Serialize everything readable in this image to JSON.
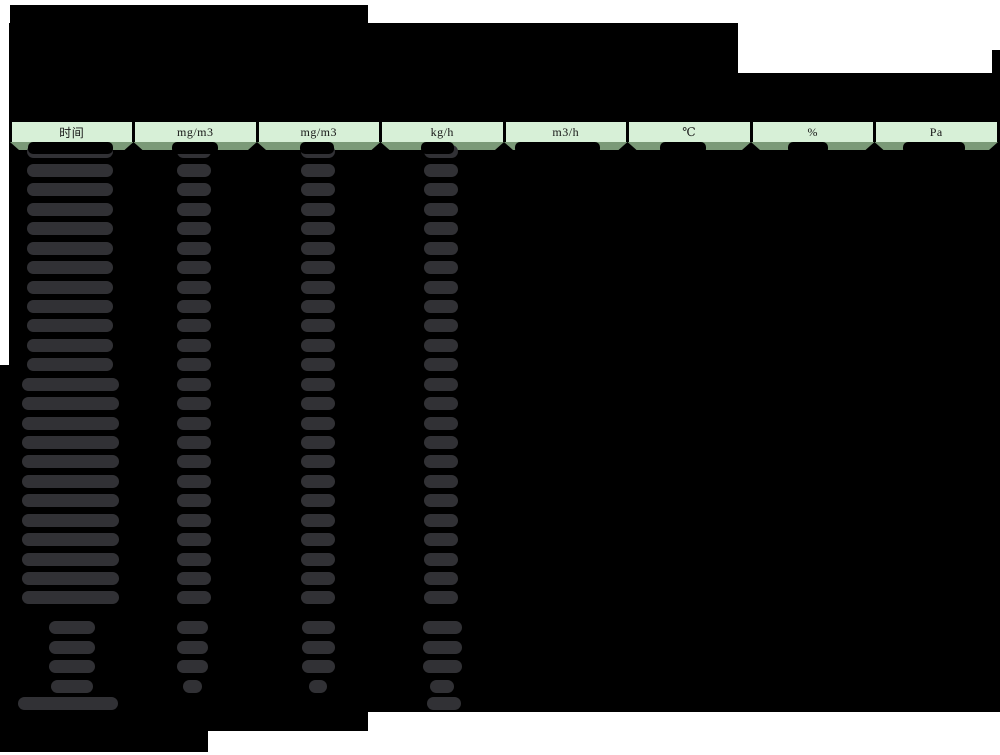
{
  "table": {
    "headers": [
      "时间",
      "mg/m3",
      "mg/m3",
      "kg/h",
      "m3/h",
      "℃",
      "%",
      "Pa"
    ],
    "body": {
      "hourly_rows": 24,
      "summary_rows": 4,
      "total_rows": 1,
      "values_obscured": true
    }
  },
  "colors": {
    "page_bg": "#ffffff",
    "table_bg": "#000000",
    "header_fill": "#d7f0d7",
    "header_band": "#7b9a78",
    "obscured_text": "#313135",
    "border": "#000000"
  }
}
